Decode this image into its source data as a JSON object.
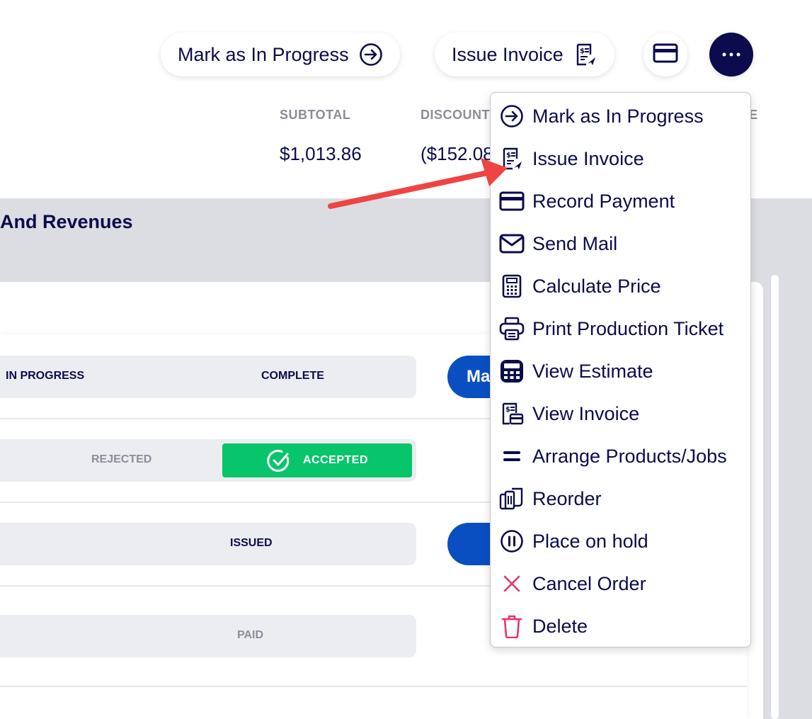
{
  "toolbar": {
    "mark_progress_label": "Mark as In Progress",
    "issue_invoice_label": "Issue Invoice"
  },
  "summary": {
    "subtotal_label": "SUBTOTAL",
    "subtotal_value": "$1,013.86",
    "discount_label": "DISCOUNT",
    "discount_value": "($152.08",
    "third_label_partial": "E"
  },
  "section": {
    "title": "And Revenues"
  },
  "rows": {
    "row1": {
      "in_progress": "IN PROGRESS",
      "complete": "COMPLETE",
      "button": "Mark"
    },
    "row2": {
      "rejected": "REJECTED",
      "accepted": "ACCEPTED"
    },
    "row3": {
      "issued": "ISSUED"
    },
    "row4": {
      "paid": "PAID"
    }
  },
  "menu": {
    "items": [
      {
        "label": "Mark as In Progress",
        "icon": "arrow-right-circle-icon"
      },
      {
        "label": "Issue Invoice",
        "icon": "invoice-send-icon"
      },
      {
        "label": "Record Payment",
        "icon": "credit-card-icon"
      },
      {
        "label": "Send Mail",
        "icon": "mail-icon"
      },
      {
        "label": "Calculate Price",
        "icon": "calculator-icon"
      },
      {
        "label": "Print Production Ticket",
        "icon": "printer-icon"
      },
      {
        "label": "View Estimate",
        "icon": "estimate-icon"
      },
      {
        "label": "View Invoice",
        "icon": "invoice-icon"
      },
      {
        "label": "Arrange Products/Jobs",
        "icon": "arrange-icon"
      },
      {
        "label": "Reorder",
        "icon": "reorder-icon"
      },
      {
        "label": "Place on hold",
        "icon": "pause-icon"
      },
      {
        "label": "Cancel Order",
        "icon": "x-icon"
      },
      {
        "label": "Delete",
        "icon": "trash-icon"
      }
    ]
  },
  "colors": {
    "navy": "#0b0b4d",
    "accepted_green": "#08c56b",
    "primary_blue": "#0a4fc2",
    "danger_pink": "#e8336b",
    "annotation_red": "#ee4443"
  }
}
